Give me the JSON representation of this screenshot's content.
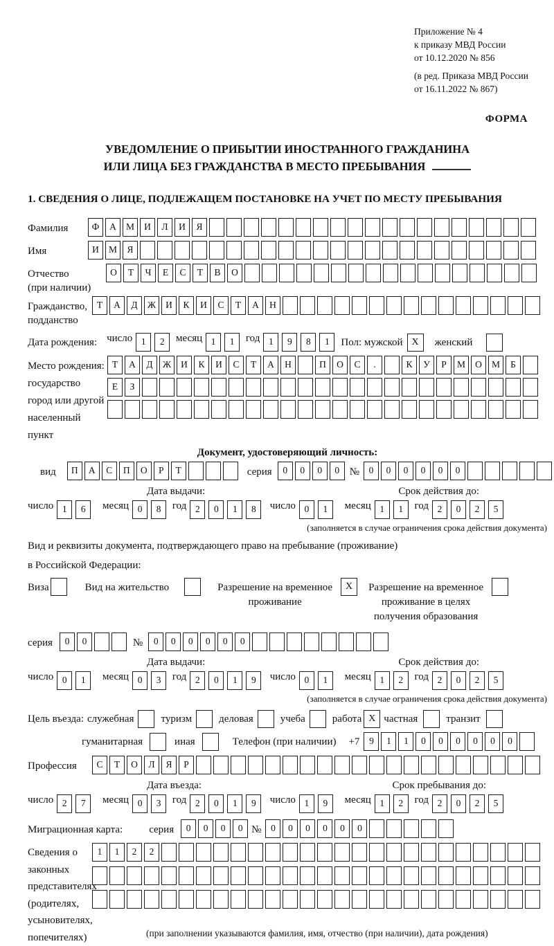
{
  "header": {
    "appendix": [
      "Приложение № 4",
      "к приказу МВД России",
      "от 10.12.2020 № 856"
    ],
    "amendment": [
      "(в ред. Приказа МВД России",
      "от 16.11.2022 № 867)"
    ],
    "form_word": "ФОРМА",
    "title_line1": "УВЕДОМЛЕНИЕ О ПРИБЫТИИ ИНОСТРАННОГО ГРАЖДАНИНА",
    "title_line2": "ИЛИ ЛИЦА БЕЗ ГРАЖДАНСТВА В МЕСТО ПРЕБЫВАНИЯ",
    "section_heading": "1. СВЕДЕНИЯ О ЛИЦЕ, ПОДЛЕЖАЩЕМ ПОСТАНОВКЕ НА УЧЕТ ПО МЕСТУ ПРЕБЫВАНИЯ"
  },
  "labels": {
    "day": "число",
    "month": "месяц",
    "year": "год",
    "series": "серия",
    "number": "№"
  },
  "person": {
    "surname_label": "Фамилия",
    "surname": {
      "value": "ФАМИЛИЯ",
      "count": 26
    },
    "name_label": "Имя",
    "name": {
      "value": "ИМЯ",
      "count": 26
    },
    "patronymic_label1": "Отчество",
    "patronymic_label2": "(при наличии)",
    "patronymic": {
      "value": "ОТЧЕСТВО",
      "count": 25
    },
    "citizenship_label1": "Гражданство,",
    "citizenship_label2": "подданство",
    "citizenship": {
      "value": "ТАДЖИКИСТАН",
      "count": 26
    },
    "birthdate_label": "Дата рождения:",
    "birth_day": {
      "value": "12",
      "count": 2
    },
    "birth_month": {
      "value": "11",
      "count": 2
    },
    "birth_year": {
      "value": "1981",
      "count": 4
    },
    "sex_label": "Пол: мужской",
    "sex_male": "X",
    "sex_female_label": "женский",
    "sex_female": "",
    "birthplace_label_lines": [
      "Место рождения:",
      "государство",
      "город или другой",
      "населенный пункт"
    ],
    "birthplace_row1": {
      "value": "ТАДЖИКИСТАН ПОС. КУРМОМБ",
      "count": 25
    },
    "birthplace_row2": {
      "value": "ЕЗ",
      "count": 25
    },
    "birthplace_row3": {
      "value": "",
      "count": 25
    }
  },
  "identity_doc": {
    "heading": "Документ, удостоверяющий личность:",
    "kind_label": "вид",
    "kind": {
      "value": "ПАСПОРТ",
      "count": 10
    },
    "series": {
      "value": "0000",
      "count": 4
    },
    "number": {
      "value": "000000",
      "count": 11
    },
    "issue_label": "Дата выдачи:",
    "issue_day": {
      "value": "16",
      "count": 2
    },
    "issue_month": {
      "value": "08",
      "count": 2
    },
    "issue_year": {
      "value": "2018",
      "count": 4
    },
    "valid_label": "Срок действия до:",
    "valid_day": {
      "value": "01",
      "count": 2
    },
    "valid_month": {
      "value": "11",
      "count": 2
    },
    "valid_year": {
      "value": "2025",
      "count": 4
    },
    "valid_note": "(заполняется в случае ограничения срока действия документа)"
  },
  "residence_doc": {
    "intro_line1": "Вид и реквизиты документа, подтверждающего право на пребывание (проживание)",
    "intro_line2": "в Российской Федерации:",
    "visa_label": "Виза",
    "visa": "",
    "residence_permit_label": "Вид на жительство",
    "residence_permit": "",
    "temp_permit_label_lines": [
      "Разрешение на временное",
      "проживание"
    ],
    "temp_permit": "X",
    "edu_permit_label_lines": [
      "Разрешение на временное",
      "проживание в целях",
      "получения образования"
    ],
    "edu_permit": "",
    "series": {
      "value": "00",
      "count": 4
    },
    "number": {
      "value": "000000",
      "count": 14
    },
    "issue_label": "Дата выдачи:",
    "issue_day": {
      "value": "01",
      "count": 2
    },
    "issue_month": {
      "value": "03",
      "count": 2
    },
    "issue_year": {
      "value": "2019",
      "count": 4
    },
    "valid_label": "Срок действия до:",
    "valid_day": {
      "value": "01",
      "count": 2
    },
    "valid_month": {
      "value": "12",
      "count": 2
    },
    "valid_year": {
      "value": "2025",
      "count": 4
    },
    "valid_note": "(заполняется в случае ограничения срока действия документа)"
  },
  "visit": {
    "purpose_label": "Цель въезда:",
    "purposes": [
      {
        "label": "служебная",
        "checked": ""
      },
      {
        "label": "туризм",
        "checked": ""
      },
      {
        "label": "деловая",
        "checked": ""
      },
      {
        "label": "учеба",
        "checked": ""
      },
      {
        "label": "работа",
        "checked": "X"
      },
      {
        "label": "частная",
        "checked": ""
      },
      {
        "label": "транзит",
        "checked": ""
      },
      {
        "label": "гуманитарная",
        "checked": ""
      },
      {
        "label": "иная",
        "checked": ""
      }
    ],
    "phone_label": "Телефон (при наличии)",
    "phone_prefix": "+7",
    "phone": {
      "value": "911000000",
      "count": 10
    },
    "profession_label": "Профессия",
    "profession": {
      "value": "СТОЛЯР",
      "count": 26
    },
    "entry_label": "Дата въезда:",
    "entry_day": {
      "value": "27",
      "count": 2
    },
    "entry_month": {
      "value": "03",
      "count": 2
    },
    "entry_year": {
      "value": "2019",
      "count": 4
    },
    "stay_label": "Срок пребывания до:",
    "stay_day": {
      "value": "19",
      "count": 2
    },
    "stay_month": {
      "value": "12",
      "count": 2
    },
    "stay_year": {
      "value": "2025",
      "count": 4
    }
  },
  "migration_card": {
    "label": "Миграционная карта:",
    "series": {
      "value": "0000",
      "count": 4
    },
    "number": {
      "value": "000000",
      "count": 11
    }
  },
  "representatives": {
    "label_lines": [
      "Сведения о",
      "законных",
      "представителях",
      "(родителях,",
      "усыновителях,",
      "попечителях)"
    ],
    "row1": {
      "value": "1122",
      "count": 26
    },
    "row2": {
      "value": "",
      "count": 26
    },
    "row3": {
      "value": "",
      "count": 26
    },
    "note": "(при заполнении указываются фамилия, имя, отчество (при наличии), дата рождения)"
  }
}
